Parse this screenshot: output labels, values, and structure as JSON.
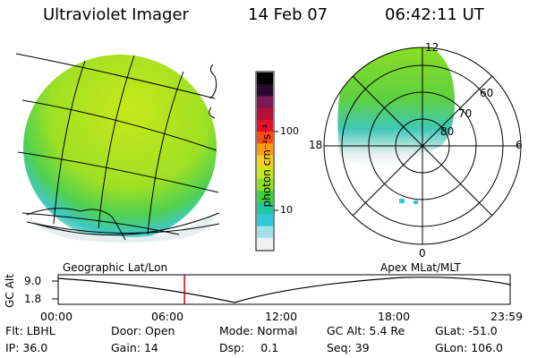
{
  "header": {
    "instrument": "Ultraviolet Imager",
    "date": "14 Feb 07",
    "time": "06:42:11 UT"
  },
  "colorbar": {
    "unit_label": "photon cm⁻²s⁻¹",
    "ticks": [
      "100",
      "10"
    ],
    "colors": [
      "#000000",
      "#2a0a2e",
      "#7a1a52",
      "#b0103a",
      "#e0102a",
      "#ff4a14",
      "#ff9a10",
      "#f5d020",
      "#c8e81a",
      "#8fe020",
      "#40d040",
      "#20c8a0",
      "#30c8d8",
      "#a0e0e8",
      "#f0f0f0"
    ]
  },
  "polar": {
    "lat_labels": [
      "60",
      "70",
      "80"
    ],
    "mlt_labels": {
      "top": "12",
      "left": "18",
      "right": "6",
      "bottom": "0"
    }
  },
  "timeline": {
    "left_label": "Geographic Lat/Lon",
    "right_label": "Apex MLat/MLT",
    "y_axis_label": "GC Alt",
    "y_ticks": [
      "9.0",
      "1.8"
    ],
    "x_ticks": [
      "00:00",
      "06:00",
      "12:00",
      "18:00",
      "23:59"
    ],
    "current_time_fraction": 0.2794,
    "marker_color": "#dd0000"
  },
  "status": {
    "row1": [
      {
        "key": "Flt:",
        "value": "LBHL"
      },
      {
        "key": "Door:",
        "value": "Open"
      },
      {
        "key": "Mode:",
        "value": "Normal"
      },
      {
        "key": "GC Alt:",
        "value": "5.4 Re"
      },
      {
        "key": "GLat:",
        "value": "-51.0"
      }
    ],
    "row2": [
      {
        "key": "IP:",
        "value": "36.0"
      },
      {
        "key": "Gain:",
        "value": "14"
      },
      {
        "key": "Dsp:",
        "value": "0.1"
      },
      {
        "key": "Seq:",
        "value": "39"
      },
      {
        "key": "GLon:",
        "value": "106.0"
      }
    ]
  }
}
